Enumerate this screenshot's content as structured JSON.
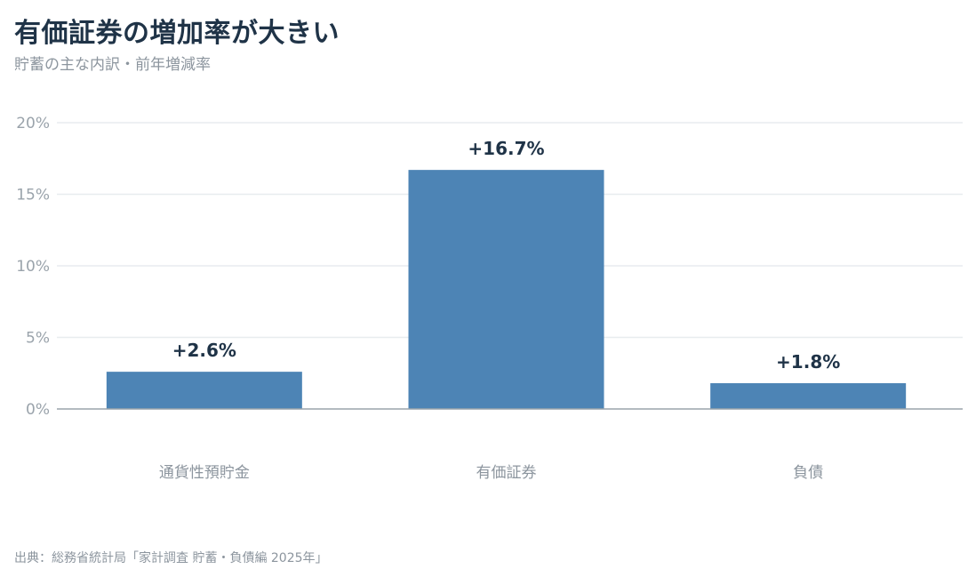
{
  "title": "有価証券の増加率が大きい",
  "subtitle": "貯蓄の主な内訳・前年増減率",
  "source": "出典：総務省統計局「家計調査 貯蓄・負債編 2025年」",
  "chart_data": {
    "type": "bar",
    "categories": [
      "通貨性預貯金",
      "有価証券",
      "負債"
    ],
    "values": [
      2.6,
      16.7,
      1.8
    ],
    "data_labels": [
      "+2.6%",
      "+16.7%",
      "+1.8%"
    ],
    "ylim": [
      0,
      20
    ],
    "yticks": [
      0,
      5,
      10,
      15,
      20
    ],
    "ytick_labels": [
      "0%",
      "5%",
      "10%",
      "15%",
      "20%"
    ],
    "grid": true,
    "bar_color": "#4d84b5",
    "grid_color": "#e8ecef",
    "axis_color": "#9aa3ab"
  }
}
